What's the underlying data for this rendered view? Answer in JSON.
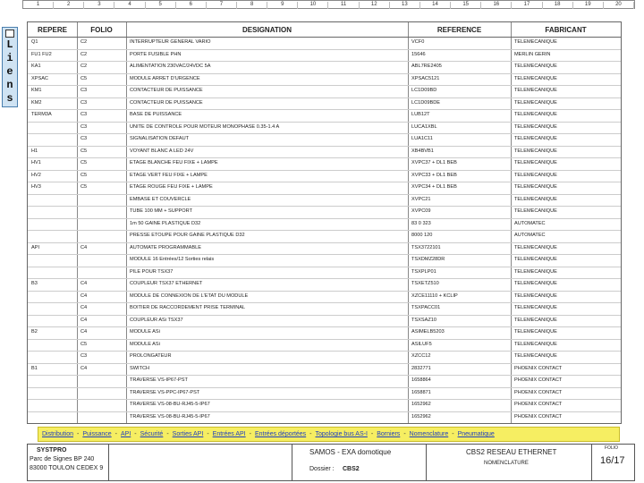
{
  "ruler": [
    "1",
    "2",
    "3",
    "4",
    "5",
    "6",
    "7",
    "8",
    "9",
    "10",
    "11",
    "12",
    "13",
    "14",
    "15",
    "16",
    "17",
    "18",
    "19",
    "20"
  ],
  "liens": "Liens",
  "table": {
    "headers": [
      "REPERE",
      "FOLIO",
      "DESIGNATION",
      "REFERENCE",
      "FABRICANT"
    ],
    "rows": [
      [
        "Q1",
        "C2",
        "INTERRUPTEUR GENERAL VARIO",
        "VCF0",
        "TELEMECANIQUE"
      ],
      [
        "FU1 FU2",
        "C2",
        "PORTE FUSIBLE PHN",
        "15646",
        "MERLIN GERIN"
      ],
      [
        "KA1",
        "C2",
        "ALIMENTATION 230VAC/24VDC 5A",
        "ABL7RE2405",
        "TELEMECANIQUE"
      ],
      [
        "XPSAC",
        "C5",
        "MODULE ARRET D'URGENCE",
        "XPSAC5121",
        "TELEMECANIQUE"
      ],
      [
        "KM1",
        "C3",
        "CONTACTEUR DE PUISSANCE",
        "LC1D09BD",
        "TELEMECANIQUE"
      ],
      [
        "KM2",
        "C3",
        "CONTACTEUR DE PUISSANCE",
        "LC1D09BDE",
        "TELEMECANIQUE"
      ],
      [
        "TERM3A",
        "C3",
        "BASE DE PUISSANCE",
        "LUB12T",
        "TELEMECANIQUE"
      ],
      [
        "",
        "C3",
        "UNITE DE CONTROLE POUR MOTEUR MONOPHASE 0.35-1.4 A",
        "LUCA1XBL",
        "TELEMECANIQUE"
      ],
      [
        "",
        "C3",
        "SIGNALISATION DEFAUT",
        "LUA1C11",
        "TELEMECANIQUE"
      ],
      [
        "H1",
        "C5",
        "VOYANT BLANC A LED 24V",
        "XB4BVB1",
        "TELEMECANIQUE"
      ],
      [
        "HV1",
        "C5",
        "ETAGE BLANCHE FEU FIXE + LAMPE",
        "XVPC37 + DL1 BEB",
        "TELEMECANIQUE"
      ],
      [
        "HV2",
        "C5",
        "ETAGE VERT FEU FIXE + LAMPE",
        "XVPC33 + DL1 BEB",
        "TELEMECANIQUE"
      ],
      [
        "HV3",
        "C5",
        "ETAGE ROUGE FEU FIXE + LAMPE",
        "XVPC34 + DL1 BEB",
        "TELEMECANIQUE"
      ],
      [
        "",
        "",
        "EMBASE ET COUVERCLE",
        "XVPC21",
        "TELEMECANIQUE"
      ],
      [
        "",
        "",
        "TUBE 100 MM + SUPPORT",
        "XVPC09",
        "TELEMECANIQUE"
      ],
      [
        "",
        "",
        "1m 50 GAINE PLASTIQUE D32",
        "83 0 323",
        "AUTOMATEC"
      ],
      [
        "",
        "",
        "PRESSE ETOUPE POUR GAINE PLASTIQUE D32",
        "8000 120",
        "AUTOMATEC"
      ],
      [
        "API",
        "C4",
        "AUTOMATE PROGRAMMABLE",
        "TSX3722101",
        "TELEMECANIQUE"
      ],
      [
        "",
        "",
        "MODULE 16 Entrées/12 Sorties relais",
        "TSXDMZ28DR",
        "TELEMECANIQUE"
      ],
      [
        "",
        "",
        "PILE POUR TSX37",
        "TSXPLP01",
        "TELEMECANIQUE"
      ],
      [
        "B3",
        "C4",
        "COUPLEUR TSX37 ETHERNET",
        "TSXETZ510",
        "TELEMECANIQUE"
      ],
      [
        "",
        "C4",
        "MODULE DE CONNEXION DE L'ETAT DU MODULE",
        "XZCE11110 + KCLIP",
        "TELEMECANIQUE"
      ],
      [
        "",
        "C4",
        "BOITIER DE RACCORDEMENT PRISE TERMINAL",
        "TSXPACC01",
        "TELEMECANIQUE"
      ],
      [
        "",
        "C4",
        "COUPLEUR ASi TSX37",
        "TSXSAZ10",
        "TELEMECANIQUE"
      ],
      [
        "B2",
        "C4",
        "MODULE ASi",
        "ASIMELB5203",
        "TELEMECANIQUE"
      ],
      [
        "",
        "C5",
        "MODULE ASi",
        "ASILUF5",
        "TELEMECANIQUE"
      ],
      [
        "",
        "C3",
        "PROLONGATEUR",
        "XZCC12",
        "TELEMECANIQUE"
      ],
      [
        "B1",
        "C4",
        "SWITCH",
        "2832771",
        "PHOENIX CONTACT"
      ],
      [
        "",
        "",
        "TRAVERSE VS-IP67-PST",
        "1658864",
        "PHOENIX CONTACT"
      ],
      [
        "",
        "",
        "TRAVERSE VS-PPC-IP67-PST",
        "1658871",
        "PHOENIX CONTACT"
      ],
      [
        "",
        "",
        "TRAVERSE VS-08-BU-RJ45-5-IP67",
        "1652962",
        "PHOENIX CONTACT"
      ],
      [
        "",
        "",
        "TRAVERSE VS-08-BU-RJ45-5-IP67",
        "1652962",
        "PHOENIX CONTACT"
      ]
    ]
  },
  "nav": [
    "Distribution",
    "Puissance",
    "API",
    "Sécurité",
    "Sorties API",
    "Entrées API",
    "Entrées déportées",
    "Topologie bus AS-I",
    "Borniers",
    "Nomenclature",
    "Pneumatique"
  ],
  "nav_separator": "-",
  "footer": {
    "company": "SYSTPRO",
    "address1": "Parc de Signes BP 240",
    "address2": "83000 TOULON CEDEX 9",
    "project": "SAMOS - EXA domotique",
    "dossier_label": "Dossier :",
    "dossier": "CBS2",
    "title": "CBS2 RESEAU ETHERNET",
    "subtitle": "NOMENCLATURE",
    "folio_label": "FOLIO",
    "folio": "16/17"
  }
}
